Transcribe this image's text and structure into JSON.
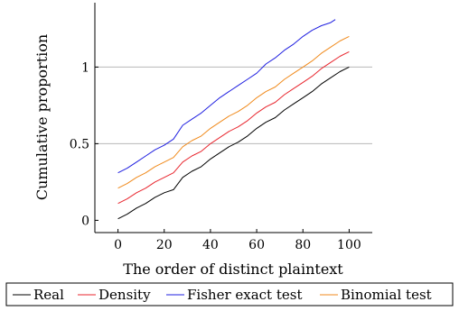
{
  "chart_data": {
    "type": "line",
    "xlabel": "The order of distinct plaintext",
    "ylabel": "Cumulative proportion",
    "xlim": [
      -10,
      110
    ],
    "ylim": [
      -0.08,
      1.42
    ],
    "xticks": [
      0,
      20,
      40,
      60,
      80,
      100
    ],
    "yticks": [
      0,
      0.5,
      1
    ],
    "ytick_labels": [
      "0",
      "0.5",
      "1"
    ],
    "grid": "horizontal-major",
    "legend_placement": "bottom-outside",
    "series": [
      {
        "name": "Real",
        "color": "#000000",
        "x": [
          0,
          4,
          8,
          12,
          16,
          20,
          24,
          28,
          32,
          36,
          40,
          44,
          48,
          52,
          56,
          60,
          64,
          68,
          72,
          76,
          80,
          84,
          88,
          92,
          96,
          100
        ],
        "y": [
          0.01,
          0.04,
          0.08,
          0.11,
          0.15,
          0.18,
          0.2,
          0.28,
          0.32,
          0.35,
          0.4,
          0.44,
          0.48,
          0.51,
          0.55,
          0.6,
          0.64,
          0.67,
          0.72,
          0.76,
          0.8,
          0.84,
          0.89,
          0.93,
          0.97,
          1.0
        ]
      },
      {
        "name": "Density",
        "color": "#e8262e",
        "x": [
          0,
          4,
          8,
          12,
          16,
          20,
          24,
          28,
          32,
          36,
          40,
          44,
          48,
          52,
          56,
          60,
          64,
          68,
          72,
          76,
          80,
          84,
          88,
          92,
          96,
          100
        ],
        "y": [
          0.11,
          0.14,
          0.18,
          0.21,
          0.25,
          0.28,
          0.31,
          0.38,
          0.42,
          0.45,
          0.5,
          0.54,
          0.58,
          0.61,
          0.65,
          0.7,
          0.74,
          0.77,
          0.82,
          0.86,
          0.9,
          0.94,
          0.99,
          1.03,
          1.07,
          1.1
        ]
      },
      {
        "name": "Fisher exact test",
        "color": "#1f1fe0",
        "x": [
          0,
          4,
          8,
          12,
          16,
          20,
          24,
          28,
          32,
          36,
          40,
          44,
          48,
          52,
          56,
          60,
          64,
          68,
          72,
          76,
          80,
          84,
          88,
          92,
          94
        ],
        "y": [
          0.31,
          0.34,
          0.38,
          0.42,
          0.46,
          0.49,
          0.53,
          0.62,
          0.66,
          0.7,
          0.75,
          0.8,
          0.84,
          0.88,
          0.92,
          0.96,
          1.02,
          1.06,
          1.11,
          1.15,
          1.2,
          1.24,
          1.27,
          1.29,
          1.31
        ]
      },
      {
        "name": "Binomial test",
        "color": "#f08a1c",
        "x": [
          0,
          4,
          8,
          12,
          16,
          20,
          24,
          28,
          32,
          36,
          40,
          44,
          48,
          52,
          56,
          60,
          64,
          68,
          72,
          76,
          80,
          84,
          88,
          92,
          96,
          100
        ],
        "y": [
          0.21,
          0.24,
          0.28,
          0.31,
          0.35,
          0.38,
          0.41,
          0.48,
          0.52,
          0.55,
          0.6,
          0.64,
          0.68,
          0.71,
          0.75,
          0.8,
          0.84,
          0.87,
          0.92,
          0.96,
          1.0,
          1.04,
          1.09,
          1.13,
          1.17,
          1.2
        ]
      }
    ]
  }
}
